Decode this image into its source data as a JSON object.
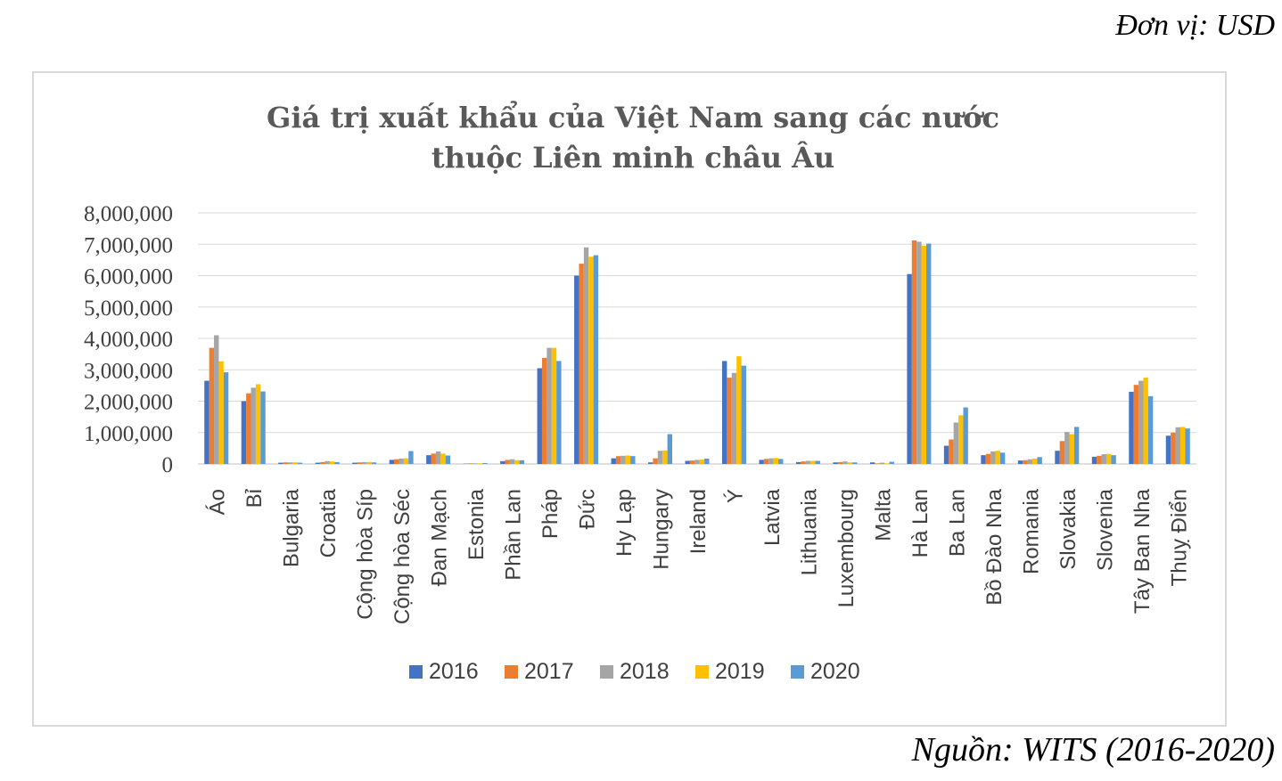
{
  "unit_note": "Đơn vị: USD",
  "source_note": "Nguồn: WITS (2016-2020)",
  "chart_data": {
    "type": "bar",
    "title_lines": [
      "Giá trị xuất khẩu của Việt Nam sang các nước",
      "thuộc Liên minh châu Âu"
    ],
    "xlabel": "",
    "ylabel": "",
    "ylim": [
      0,
      8000000
    ],
    "yticks": [
      0,
      1000000,
      2000000,
      3000000,
      4000000,
      5000000,
      6000000,
      7000000,
      8000000
    ],
    "ytick_labels": [
      "0",
      "1,000,000",
      "2,000,000",
      "3,000,000",
      "4,000,000",
      "5,000,000",
      "6,000,000",
      "7,000,000",
      "8,000,000"
    ],
    "grid": true,
    "legend_position": "bottom",
    "categories": [
      "Áo",
      "Bỉ",
      "Bulgaria",
      "Croatia",
      "Cộng hòa Síp",
      "Cộng hòa Séc",
      "Đan Mạch",
      "Estonia",
      "Phần Lan",
      "Pháp",
      "Đức",
      "Hy Lạp",
      "Hungary",
      "Ireland",
      "Ý",
      "Latvia",
      "Lithuania",
      "Luxembourg",
      "Malta",
      "Hà Lan",
      "Ba Lan",
      "Bồ Đào Nha",
      "Romania",
      "Slovakia",
      "Slovenia",
      "Tây Ban Nha",
      "Thuỵ Điển"
    ],
    "series": [
      {
        "name": "2016",
        "color": "#4472c4",
        "values": [
          2650000,
          2000000,
          40000,
          40000,
          40000,
          130000,
          280000,
          10000,
          90000,
          3050000,
          6000000,
          180000,
          50000,
          100000,
          3280000,
          130000,
          60000,
          50000,
          50000,
          6050000,
          580000,
          280000,
          110000,
          420000,
          230000,
          2300000,
          900000
        ]
      },
      {
        "name": "2017",
        "color": "#ed7d31",
        "values": [
          3700000,
          2250000,
          50000,
          60000,
          50000,
          150000,
          330000,
          20000,
          130000,
          3380000,
          6380000,
          250000,
          180000,
          110000,
          2750000,
          160000,
          80000,
          60000,
          20000,
          7120000,
          780000,
          320000,
          120000,
          730000,
          260000,
          2520000,
          1000000
        ]
      },
      {
        "name": "2018",
        "color": "#a5a5a5",
        "values": [
          4100000,
          2430000,
          50000,
          90000,
          60000,
          170000,
          400000,
          20000,
          150000,
          3700000,
          6900000,
          260000,
          420000,
          130000,
          2900000,
          180000,
          100000,
          80000,
          40000,
          7080000,
          1320000,
          400000,
          150000,
          1020000,
          310000,
          2650000,
          1170000
        ]
      },
      {
        "name": "2019",
        "color": "#ffc000",
        "values": [
          3270000,
          2540000,
          50000,
          80000,
          60000,
          180000,
          330000,
          20000,
          120000,
          3700000,
          6600000,
          270000,
          430000,
          140000,
          3430000,
          190000,
          100000,
          50000,
          20000,
          6950000,
          1550000,
          420000,
          170000,
          950000,
          320000,
          2750000,
          1180000
        ]
      },
      {
        "name": "2020",
        "color": "#5b9bd5",
        "values": [
          2920000,
          2310000,
          40000,
          60000,
          50000,
          410000,
          270000,
          30000,
          120000,
          3280000,
          6650000,
          250000,
          950000,
          170000,
          3130000,
          160000,
          100000,
          50000,
          70000,
          7020000,
          1800000,
          360000,
          220000,
          1180000,
          280000,
          2160000,
          1130000
        ]
      }
    ]
  }
}
